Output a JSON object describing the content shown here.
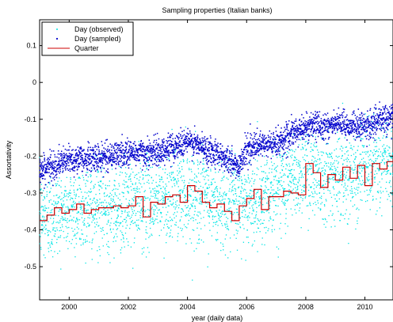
{
  "chart_data": {
    "type": "scatter",
    "title": "Sampling properties (Italian banks)",
    "xlabel": "year (daily data)",
    "ylabel": "Assortativity",
    "xlim": [
      1999.0,
      2010.95
    ],
    "ylim": [
      -0.59,
      0.17
    ],
    "x_ticks": [
      2000,
      2002,
      2004,
      2006,
      2008,
      2010
    ],
    "x_tick_labels": [
      "2000",
      "2002",
      "2004",
      "2006",
      "2008",
      "2010"
    ],
    "y_ticks": [
      -0.5,
      -0.4,
      -0.3,
      -0.2,
      -0.1,
      0,
      0.1
    ],
    "y_tick_labels": [
      "-0.5",
      "-0.4",
      "-0.3",
      "-0.2",
      "-0.1",
      "0",
      "0.1"
    ],
    "grid": false,
    "legend_position": "top-left",
    "series": [
      {
        "name": "Day (observed)",
        "kind": "scatter",
        "color": "#00e5e5",
        "trend_x": [
          1999.0,
          2000.0,
          2001.0,
          2002.0,
          2003.0,
          2004.0,
          2005.0,
          2006.0,
          2007.0,
          2008.0,
          2009.0,
          2010.0,
          2010.95
        ],
        "trend_y": [
          -0.37,
          -0.345,
          -0.34,
          -0.335,
          -0.315,
          -0.3,
          -0.33,
          -0.325,
          -0.29,
          -0.24,
          -0.255,
          -0.23,
          -0.215
        ],
        "spread_sd": 0.06
      },
      {
        "name": "Day (sampled)",
        "kind": "scatter",
        "color": "#0000cc",
        "trend_x": [
          1999.0,
          1999.5,
          2000.0,
          2001.0,
          2002.0,
          2003.0,
          2004.0,
          2004.6,
          2005.0,
          2005.7,
          2006.0,
          2007.0,
          2008.0,
          2009.0,
          2010.0,
          2010.95
        ],
        "trend_y": [
          -0.24,
          -0.225,
          -0.21,
          -0.205,
          -0.19,
          -0.19,
          -0.16,
          -0.18,
          -0.19,
          -0.23,
          -0.18,
          -0.165,
          -0.12,
          -0.115,
          -0.12,
          -0.09
        ],
        "spread_sd": 0.018
      },
      {
        "name": "Quarter",
        "kind": "step",
        "color": "#cc0000",
        "x": [
          1999.0,
          1999.25,
          1999.5,
          1999.75,
          2000.0,
          2000.25,
          2000.5,
          2000.75,
          2001.0,
          2001.25,
          2001.5,
          2001.75,
          2002.0,
          2002.25,
          2002.5,
          2002.75,
          2003.0,
          2003.25,
          2003.5,
          2003.75,
          2004.0,
          2004.25,
          2004.5,
          2004.75,
          2005.0,
          2005.25,
          2005.5,
          2005.75,
          2006.0,
          2006.25,
          2006.5,
          2006.75,
          2007.0,
          2007.25,
          2007.5,
          2007.75,
          2008.0,
          2008.25,
          2008.5,
          2008.75,
          2009.0,
          2009.25,
          2009.5,
          2009.75,
          2010.0,
          2010.25,
          2010.5,
          2010.75
        ],
        "y": [
          -0.375,
          -0.36,
          -0.34,
          -0.355,
          -0.345,
          -0.33,
          -0.355,
          -0.345,
          -0.34,
          -0.34,
          -0.335,
          -0.34,
          -0.335,
          -0.31,
          -0.365,
          -0.325,
          -0.33,
          -0.31,
          -0.305,
          -0.325,
          -0.28,
          -0.295,
          -0.325,
          -0.34,
          -0.33,
          -0.35,
          -0.375,
          -0.335,
          -0.315,
          -0.29,
          -0.345,
          -0.31,
          -0.31,
          -0.295,
          -0.3,
          -0.305,
          -0.22,
          -0.245,
          -0.285,
          -0.25,
          -0.265,
          -0.23,
          -0.26,
          -0.225,
          -0.28,
          -0.22,
          -0.235,
          -0.215
        ]
      }
    ]
  }
}
